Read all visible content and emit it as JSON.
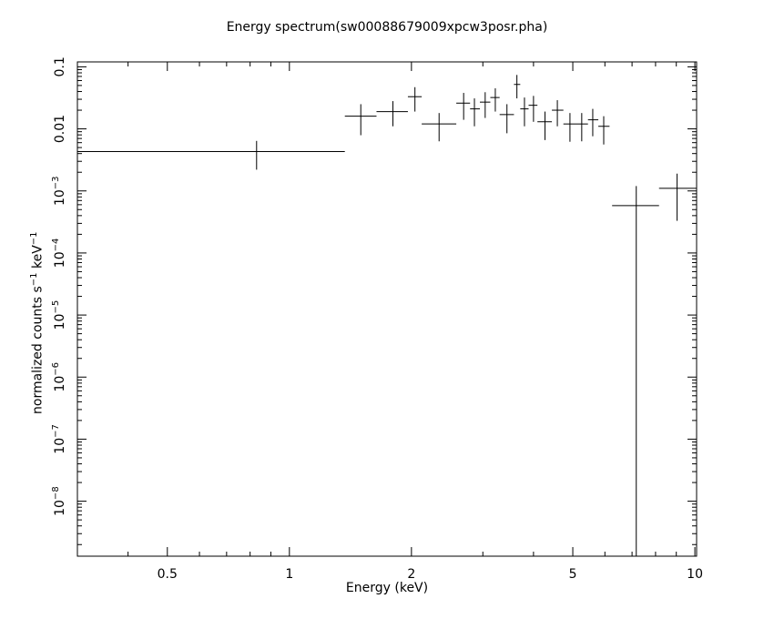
{
  "chart_data": {
    "type": "scatter",
    "title": "Energy spectrum(sw00088679009xpcw3posr.pha)",
    "xlabel": "Energy (keV)",
    "ylabel": {
      "prefix": "normalized counts s",
      "sup1": "−1",
      "mid": " keV",
      "sup2": "−1"
    },
    "xscale": "log",
    "yscale": "log",
    "xlim": [
      0.3,
      10.1
    ],
    "ylim": [
      1.3e-09,
      0.12
    ],
    "xticks": [
      {
        "value": 0.5,
        "label": "0.5"
      },
      {
        "value": 1,
        "label": "1"
      },
      {
        "value": 2,
        "label": "2"
      },
      {
        "value": 5,
        "label": "5"
      },
      {
        "value": 10,
        "label": "10"
      }
    ],
    "yticks": [
      {
        "value": 0.1,
        "label": "0.1"
      },
      {
        "value": 0.01,
        "label": "0.01"
      },
      {
        "value": 0.001,
        "base": "10",
        "exp": "−3"
      },
      {
        "value": 0.0001,
        "base": "10",
        "exp": "−4"
      },
      {
        "value": 1e-05,
        "base": "10",
        "exp": "−5"
      },
      {
        "value": 1e-06,
        "base": "10",
        "exp": "−6"
      },
      {
        "value": 1e-07,
        "base": "10",
        "exp": "−7"
      },
      {
        "value": 1e-08,
        "base": "10",
        "exp": "−8"
      }
    ],
    "points": [
      {
        "x": 0.83,
        "xlo": 0.3,
        "xhi": 1.37,
        "y": 0.0043,
        "ylo": 0.0022,
        "yhi": 0.0064
      },
      {
        "x": 1.5,
        "xlo": 1.37,
        "xhi": 1.64,
        "y": 0.016,
        "ylo": 0.0079,
        "yhi": 0.025
      },
      {
        "x": 1.8,
        "xlo": 1.64,
        "xhi": 1.96,
        "y": 0.019,
        "ylo": 0.011,
        "yhi": 0.028
      },
      {
        "x": 2.04,
        "xlo": 1.96,
        "xhi": 2.12,
        "y": 0.033,
        "ylo": 0.019,
        "yhi": 0.047
      },
      {
        "x": 2.34,
        "xlo": 2.12,
        "xhi": 2.58,
        "y": 0.012,
        "ylo": 0.0063,
        "yhi": 0.018
      },
      {
        "x": 2.69,
        "xlo": 2.58,
        "xhi": 2.79,
        "y": 0.026,
        "ylo": 0.014,
        "yhi": 0.038
      },
      {
        "x": 2.86,
        "xlo": 2.79,
        "xhi": 2.95,
        "y": 0.021,
        "ylo": 0.011,
        "yhi": 0.031
      },
      {
        "x": 3.04,
        "xlo": 2.95,
        "xhi": 3.13,
        "y": 0.027,
        "ylo": 0.015,
        "yhi": 0.039
      },
      {
        "x": 3.22,
        "xlo": 3.13,
        "xhi": 3.3,
        "y": 0.032,
        "ylo": 0.019,
        "yhi": 0.045
      },
      {
        "x": 3.44,
        "xlo": 3.3,
        "xhi": 3.58,
        "y": 0.017,
        "ylo": 0.0085,
        "yhi": 0.025
      },
      {
        "x": 3.64,
        "xlo": 3.58,
        "xhi": 3.71,
        "y": 0.052,
        "ylo": 0.031,
        "yhi": 0.074
      },
      {
        "x": 3.8,
        "xlo": 3.71,
        "xhi": 3.89,
        "y": 0.021,
        "ylo": 0.011,
        "yhi": 0.032
      },
      {
        "x": 4.0,
        "xlo": 3.89,
        "xhi": 4.09,
        "y": 0.024,
        "ylo": 0.013,
        "yhi": 0.034
      },
      {
        "x": 4.27,
        "xlo": 4.09,
        "xhi": 4.44,
        "y": 0.013,
        "ylo": 0.0066,
        "yhi": 0.019
      },
      {
        "x": 4.58,
        "xlo": 4.44,
        "xhi": 4.74,
        "y": 0.02,
        "ylo": 0.011,
        "yhi": 0.029
      },
      {
        "x": 4.92,
        "xlo": 4.74,
        "xhi": 5.09,
        "y": 0.012,
        "ylo": 0.0062,
        "yhi": 0.018
      },
      {
        "x": 5.26,
        "xlo": 5.09,
        "xhi": 5.45,
        "y": 0.012,
        "ylo": 0.0063,
        "yhi": 0.018
      },
      {
        "x": 5.6,
        "xlo": 5.45,
        "xhi": 5.78,
        "y": 0.014,
        "ylo": 0.0076,
        "yhi": 0.021
      },
      {
        "x": 5.96,
        "xlo": 5.78,
        "xhi": 6.16,
        "y": 0.011,
        "ylo": 0.0056,
        "yhi": 0.016
      },
      {
        "x": 7.17,
        "xlo": 6.25,
        "xhi": 8.16,
        "y": 0.00058,
        "ylo": 1.3e-09,
        "yhi": 0.0012
      },
      {
        "x": 9.04,
        "xlo": 8.16,
        "xhi": 10.1,
        "y": 0.0011,
        "ylo": 0.00033,
        "yhi": 0.0019
      }
    ]
  }
}
